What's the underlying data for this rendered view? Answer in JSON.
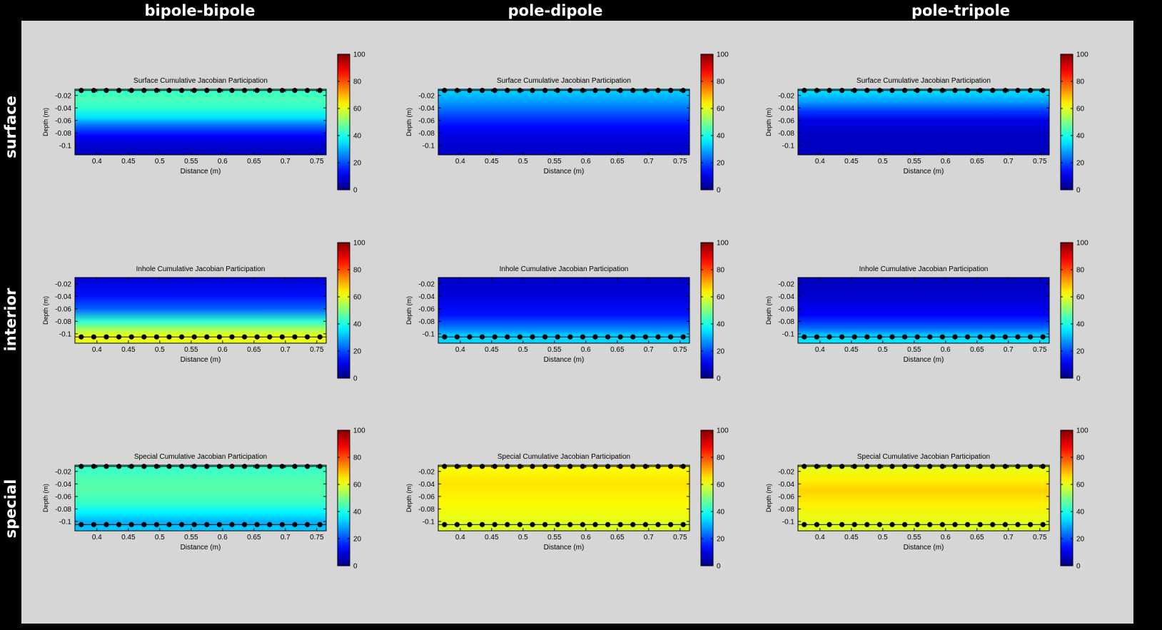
{
  "columns": [
    "bipole-bipole",
    "pole-dipole",
    "pole-tripole"
  ],
  "rows": [
    "surface",
    "interior",
    "special"
  ],
  "colors": {
    "frame": "#000000",
    "background": "#d6d6d6",
    "panel_bg": "#d6d6d6",
    "electrode": "#000000"
  },
  "chart_data": {
    "type": "heatmap",
    "colormap": "jet",
    "x_ticks": [
      0.4,
      0.45,
      0.5,
      0.55,
      0.6,
      0.65,
      0.7,
      0.75
    ],
    "x_tick_labels": [
      "0.4",
      "0.45",
      "0.5",
      "0.55",
      "0.6",
      "0.65",
      "0.7",
      "0.75"
    ],
    "y_ticks": [
      -0.02,
      -0.04,
      -0.06,
      -0.08,
      -0.1
    ],
    "y_tick_labels": [
      "-0.02",
      "-0.04",
      "-0.06",
      "-0.08",
      "-0.1"
    ],
    "xlim": [
      0.365,
      0.765
    ],
    "ylim": [
      -0.115,
      -0.01
    ],
    "xlabel": "Distance (m)",
    "ylabel": "Depth (m)",
    "colorbar": {
      "range": [
        0,
        100
      ],
      "ticks": [
        0,
        20,
        40,
        60,
        80,
        100
      ],
      "tick_labels": [
        "0",
        "20",
        "40",
        "60",
        "80",
        "100"
      ]
    },
    "electrode_x": [
      0.375,
      0.395,
      0.415,
      0.435,
      0.455,
      0.475,
      0.495,
      0.515,
      0.535,
      0.555,
      0.575,
      0.595,
      0.615,
      0.635,
      0.655,
      0.675,
      0.695,
      0.715,
      0.735,
      0.755
    ],
    "panels": [
      {
        "row": "surface",
        "col": "bipole-bipole",
        "title": "Surface Cumulative Jacobian Participation",
        "electrode_depths": [
          -0.012
        ],
        "depth_profile": [
          {
            "depth": -0.012,
            "value": 42
          },
          {
            "depth": -0.025,
            "value": 45
          },
          {
            "depth": -0.04,
            "value": 42
          },
          {
            "depth": -0.055,
            "value": 35
          },
          {
            "depth": -0.07,
            "value": 22
          },
          {
            "depth": -0.085,
            "value": 12
          },
          {
            "depth": -0.1,
            "value": 8
          },
          {
            "depth": -0.115,
            "value": 6
          }
        ]
      },
      {
        "row": "surface",
        "col": "pole-dipole",
        "title": "Surface Cumulative Jacobian Participation",
        "electrode_depths": [
          -0.012
        ],
        "depth_profile": [
          {
            "depth": -0.012,
            "value": 33
          },
          {
            "depth": -0.03,
            "value": 28
          },
          {
            "depth": -0.05,
            "value": 20
          },
          {
            "depth": -0.07,
            "value": 13
          },
          {
            "depth": -0.09,
            "value": 9
          },
          {
            "depth": -0.115,
            "value": 7
          }
        ]
      },
      {
        "row": "surface",
        "col": "pole-tripole",
        "title": "Surface Cumulative Jacobian Participation",
        "electrode_depths": [
          -0.012
        ],
        "depth_profile": [
          {
            "depth": -0.012,
            "value": 35
          },
          {
            "depth": -0.03,
            "value": 28
          },
          {
            "depth": -0.045,
            "value": 18
          },
          {
            "depth": -0.06,
            "value": 10
          },
          {
            "depth": -0.08,
            "value": 7
          },
          {
            "depth": -0.115,
            "value": 6
          }
        ]
      },
      {
        "row": "interior",
        "col": "bipole-bipole",
        "title": "Inhole Cumulative Jacobian Participation",
        "electrode_depths": [
          -0.105
        ],
        "depth_profile": [
          {
            "depth": -0.01,
            "value": 8
          },
          {
            "depth": -0.04,
            "value": 14
          },
          {
            "depth": -0.06,
            "value": 22
          },
          {
            "depth": -0.08,
            "value": 42
          },
          {
            "depth": -0.095,
            "value": 55
          },
          {
            "depth": -0.105,
            "value": 62
          },
          {
            "depth": -0.115,
            "value": 60
          }
        ]
      },
      {
        "row": "interior",
        "col": "pole-dipole",
        "title": "Inhole Cumulative Jacobian Participation",
        "electrode_depths": [
          -0.105
        ],
        "depth_profile": [
          {
            "depth": -0.01,
            "value": 7
          },
          {
            "depth": -0.04,
            "value": 9
          },
          {
            "depth": -0.07,
            "value": 14
          },
          {
            "depth": -0.09,
            "value": 24
          },
          {
            "depth": -0.105,
            "value": 34
          },
          {
            "depth": -0.115,
            "value": 33
          }
        ]
      },
      {
        "row": "interior",
        "col": "pole-tripole",
        "title": "Inhole Cumulative Jacobian Participation",
        "electrode_depths": [
          -0.105
        ],
        "depth_profile": [
          {
            "depth": -0.01,
            "value": 6
          },
          {
            "depth": -0.04,
            "value": 8
          },
          {
            "depth": -0.07,
            "value": 12
          },
          {
            "depth": -0.09,
            "value": 22
          },
          {
            "depth": -0.105,
            "value": 34
          },
          {
            "depth": -0.115,
            "value": 35
          }
        ]
      },
      {
        "row": "special",
        "col": "bipole-bipole",
        "title": "Special Cumulative Jacobian Participation",
        "electrode_depths": [
          -0.012,
          -0.105
        ],
        "depth_profile": [
          {
            "depth": -0.012,
            "value": 42
          },
          {
            "depth": -0.03,
            "value": 45
          },
          {
            "depth": -0.05,
            "value": 46
          },
          {
            "depth": -0.07,
            "value": 43
          },
          {
            "depth": -0.085,
            "value": 37
          },
          {
            "depth": -0.1,
            "value": 30
          },
          {
            "depth": -0.115,
            "value": 32
          }
        ]
      },
      {
        "row": "special",
        "col": "pole-dipole",
        "title": "Special Cumulative Jacobian Participation",
        "electrode_depths": [
          -0.012,
          -0.105
        ],
        "depth_profile": [
          {
            "depth": -0.012,
            "value": 62
          },
          {
            "depth": -0.04,
            "value": 65
          },
          {
            "depth": -0.07,
            "value": 63
          },
          {
            "depth": -0.1,
            "value": 60
          },
          {
            "depth": -0.115,
            "value": 59
          }
        ]
      },
      {
        "row": "special",
        "col": "pole-tripole",
        "title": "Special Cumulative Jacobian Participation",
        "electrode_depths": [
          -0.012,
          -0.105
        ],
        "depth_profile": [
          {
            "depth": -0.012,
            "value": 60
          },
          {
            "depth": -0.035,
            "value": 64
          },
          {
            "depth": -0.05,
            "value": 67
          },
          {
            "depth": -0.07,
            "value": 64
          },
          {
            "depth": -0.1,
            "value": 60
          },
          {
            "depth": -0.115,
            "value": 59
          }
        ]
      }
    ]
  }
}
